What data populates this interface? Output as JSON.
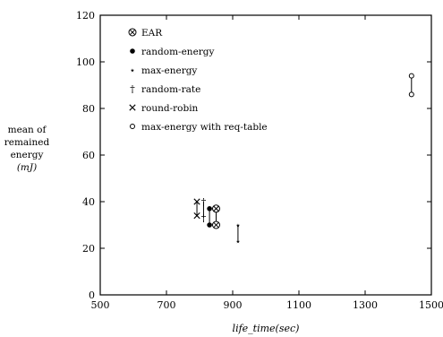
{
  "chart_data": {
    "type": "scatter",
    "title": "",
    "xlabel": "life_time(sec)",
    "ylabel": [
      "mean of",
      "remained",
      "energy",
      "(mJ)"
    ],
    "xlim": [
      500,
      1500
    ],
    "ylim": [
      0,
      120
    ],
    "x_ticks": [
      500,
      700,
      900,
      1100,
      1300,
      1500
    ],
    "y_ticks": [
      0,
      20,
      40,
      60,
      80,
      100,
      120
    ],
    "grid": false,
    "legend_position": "top-left",
    "series": [
      {
        "name": "EAR",
        "marker": "circle-x",
        "points": [
          [
            850,
            37
          ],
          [
            850,
            30
          ]
        ],
        "connect_range": true
      },
      {
        "name": "random-energy",
        "marker": "filled-circle",
        "points": [
          [
            830,
            37
          ],
          [
            830,
            30
          ]
        ],
        "connect_range": true
      },
      {
        "name": "max-energy",
        "marker": "star",
        "points": [
          [
            916,
            30
          ],
          [
            916,
            23
          ]
        ],
        "connect_range": true
      },
      {
        "name": "random-rate",
        "marker": "dagger",
        "points": [
          [
            812,
            40
          ],
          [
            812,
            33
          ]
        ],
        "connect_range": true
      },
      {
        "name": "round-robin",
        "marker": "cross",
        "points": [
          [
            792,
            40
          ],
          [
            792,
            34
          ]
        ],
        "connect_range": true
      },
      {
        "name": "max-energy with req-table",
        "marker": "open-circle",
        "points": [
          [
            1440,
            94
          ],
          [
            1440,
            86
          ]
        ],
        "connect_range": true
      }
    ]
  }
}
